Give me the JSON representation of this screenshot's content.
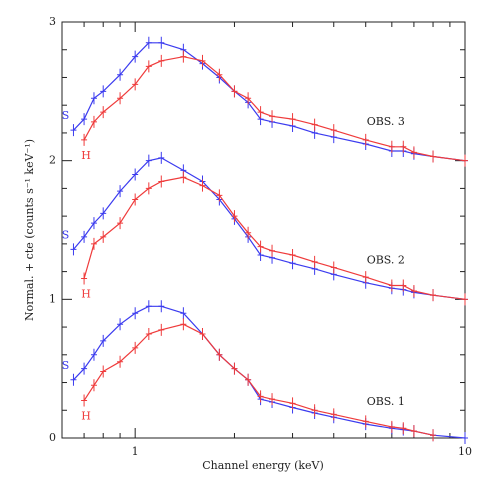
{
  "chart_data": {
    "type": "scatter",
    "x_label": "Channel energy (keV)",
    "y_label": "Normal. + cte (counts s⁻¹ keV⁻¹)",
    "xscale": "log",
    "xlim": [
      0.6,
      10
    ],
    "ylim": [
      0,
      3
    ],
    "xticks": [
      1,
      10
    ],
    "yticks": [
      0,
      1,
      2,
      3
    ],
    "xminorticks": [
      0.6,
      0.7,
      0.8,
      0.9,
      2,
      3,
      4,
      5,
      6,
      7,
      8,
      9
    ],
    "yminorticks": [
      0.2,
      0.4,
      0.6,
      0.8,
      1.2,
      1.4,
      1.6,
      1.8,
      2.2,
      2.4,
      2.6,
      2.8
    ],
    "x": [
      0.65,
      0.7,
      0.75,
      0.8,
      0.9,
      1.0,
      1.1,
      1.2,
      1.4,
      1.6,
      1.8,
      2.0,
      2.2,
      2.4,
      2.6,
      3,
      3.5,
      4,
      5,
      6,
      6.5,
      7,
      8,
      10
    ],
    "annotations": [
      "OBS. 3",
      "OBS. 2",
      "OBS. 1"
    ],
    "series": [
      {
        "name": "S",
        "color": "#3b3bef",
        "values": [
          2.22,
          2.3,
          2.45,
          2.5,
          2.62,
          2.75,
          2.85,
          2.85,
          2.8,
          2.7,
          2.6,
          2.5,
          2.42,
          2.3,
          2.28,
          2.25,
          2.2,
          2.17,
          2.12,
          2.07,
          2.07,
          2.05,
          2.03,
          2.0
        ]
      },
      {
        "name": "H",
        "color": "#ef3b3b",
        "values": [
          null,
          2.15,
          2.28,
          2.35,
          2.45,
          2.55,
          2.68,
          2.72,
          2.75,
          2.72,
          2.62,
          2.5,
          2.45,
          2.35,
          2.32,
          2.3,
          2.26,
          2.22,
          2.15,
          2.1,
          2.1,
          2.06,
          2.03,
          2.0
        ]
      },
      {
        "name": "S",
        "color": "#3b3bef",
        "values": [
          1.36,
          1.45,
          1.55,
          1.62,
          1.78,
          1.9,
          2.0,
          2.02,
          1.93,
          1.85,
          1.72,
          1.58,
          1.45,
          1.32,
          1.3,
          1.26,
          1.22,
          1.18,
          1.12,
          1.08,
          1.07,
          1.05,
          1.03,
          1.0
        ]
      },
      {
        "name": "H",
        "color": "#ef3b3b",
        "values": [
          null,
          1.15,
          1.4,
          1.45,
          1.55,
          1.72,
          1.8,
          1.85,
          1.88,
          1.82,
          1.75,
          1.6,
          1.48,
          1.38,
          1.35,
          1.32,
          1.27,
          1.23,
          1.16,
          1.1,
          1.1,
          1.06,
          1.03,
          1.0
        ]
      },
      {
        "name": "S",
        "color": "#3b3bef",
        "values": [
          0.42,
          0.5,
          0.6,
          0.7,
          0.82,
          0.9,
          0.95,
          0.95,
          0.9,
          0.75,
          0.6,
          0.5,
          0.42,
          0.28,
          0.26,
          0.22,
          0.18,
          0.15,
          0.1,
          0.07,
          0.06,
          0.05,
          0.02,
          0.0
        ]
      },
      {
        "name": "H",
        "color": "#ef3b3b",
        "values": [
          null,
          0.27,
          0.38,
          0.48,
          0.55,
          0.65,
          0.75,
          0.78,
          0.82,
          0.75,
          0.6,
          0.5,
          0.42,
          0.3,
          0.28,
          0.25,
          0.2,
          0.17,
          0.12,
          0.08,
          0.07,
          0.05,
          0.02,
          null
        ]
      }
    ]
  }
}
